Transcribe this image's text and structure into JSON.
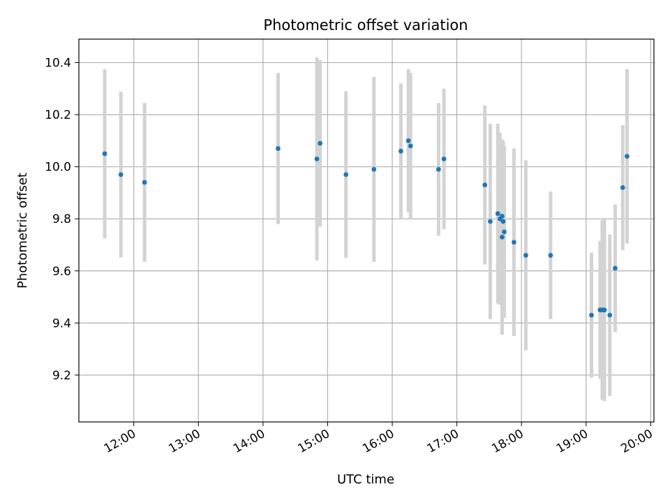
{
  "chart_data": {
    "type": "scatter",
    "title": "Photometric offset variation",
    "xlabel": "UTC time",
    "ylabel": "Photometric offset",
    "x_ticks": [
      "12:00",
      "13:00",
      "14:00",
      "15:00",
      "16:00",
      "17:00",
      "18:00",
      "19:00",
      "20:00"
    ],
    "y_ticks": [
      "9.2",
      "9.4",
      "9.6",
      "9.8",
      "10.0",
      "10.2",
      "10.4"
    ],
    "xlim": [
      "11:09",
      "20:03"
    ],
    "ylim": [
      9.02,
      10.49
    ],
    "grid": true,
    "point_color": "#1f77b4",
    "errorbar_color": "#d3d3d3",
    "points": [
      {
        "x": "11:33",
        "y": 10.05,
        "err": 0.325
      },
      {
        "x": "11:48",
        "y": 9.97,
        "err": 0.318
      },
      {
        "x": "12:10",
        "y": 9.94,
        "err": 0.305
      },
      {
        "x": "14:14",
        "y": 10.07,
        "err": 0.29
      },
      {
        "x": "14:50",
        "y": 10.03,
        "err": 0.39
      },
      {
        "x": "14:53",
        "y": 10.09,
        "err": 0.32
      },
      {
        "x": "15:17",
        "y": 9.97,
        "err": 0.32
      },
      {
        "x": "15:43",
        "y": 9.99,
        "err": 0.355
      },
      {
        "x": "16:08",
        "y": 10.06,
        "err": 0.26
      },
      {
        "x": "16:15",
        "y": 10.1,
        "err": 0.275
      },
      {
        "x": "16:17",
        "y": 10.08,
        "err": 0.28
      },
      {
        "x": "16:43",
        "y": 9.99,
        "err": 0.255
      },
      {
        "x": "16:48",
        "y": 10.03,
        "err": 0.27
      },
      {
        "x": "17:26",
        "y": 9.93,
        "err": 0.305
      },
      {
        "x": "17:31",
        "y": 9.79,
        "err": 0.375
      },
      {
        "x": "17:38",
        "y": 9.82,
        "err": 0.345
      },
      {
        "x": "17:40",
        "y": 9.8,
        "err": 0.33
      },
      {
        "x": "17:42",
        "y": 9.73,
        "err": 0.375
      },
      {
        "x": "17:42",
        "y": 9.81,
        "err": 0.285
      },
      {
        "x": "17:43",
        "y": 9.79,
        "err": 0.31
      },
      {
        "x": "17:44",
        "y": 9.75,
        "err": 0.33
      },
      {
        "x": "17:53",
        "y": 9.71,
        "err": 0.36
      },
      {
        "x": "18:04",
        "y": 9.66,
        "err": 0.365
      },
      {
        "x": "18:27",
        "y": 9.66,
        "err": 0.245
      },
      {
        "x": "19:05",
        "y": 9.43,
        "err": 0.24
      },
      {
        "x": "19:13",
        "y": 9.45,
        "err": 0.265
      },
      {
        "x": "19:15",
        "y": 9.45,
        "err": 0.345
      },
      {
        "x": "19:17",
        "y": 9.45,
        "err": 0.35
      },
      {
        "x": "19:22",
        "y": 9.43,
        "err": 0.31
      },
      {
        "x": "19:27",
        "y": 9.61,
        "err": 0.245
      },
      {
        "x": "19:34",
        "y": 9.92,
        "err": 0.24
      },
      {
        "x": "19:38",
        "y": 10.04,
        "err": 0.335
      }
    ]
  }
}
